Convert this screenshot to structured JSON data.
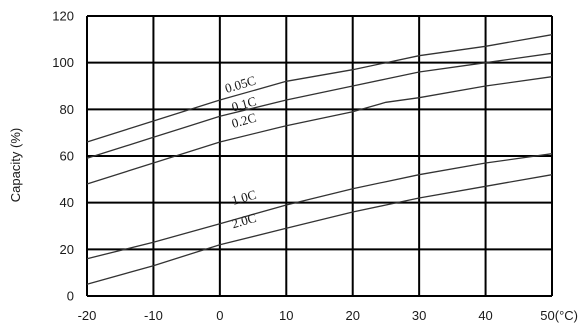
{
  "chart_data": {
    "type": "line",
    "ylabel": "Capacity (%)",
    "xlim": [
      -20,
      50
    ],
    "ylim": [
      0,
      120
    ],
    "grid": true,
    "x_ticks": [
      "-20",
      "-10",
      "0",
      "10",
      "20",
      "30",
      "40",
      "50(°C)"
    ],
    "y_ticks": [
      "0",
      "20",
      "40",
      "60",
      "80",
      "100",
      "120"
    ],
    "series": [
      {
        "name": "0.05C",
        "points": [
          [
            -20,
            66
          ],
          [
            -10,
            75
          ],
          [
            0,
            84
          ],
          [
            10,
            92
          ],
          [
            20,
            97
          ],
          [
            25,
            100
          ],
          [
            30,
            103
          ],
          [
            40,
            107
          ],
          [
            50,
            112
          ]
        ]
      },
      {
        "name": "0.1C",
        "points": [
          [
            -20,
            59
          ],
          [
            -10,
            68
          ],
          [
            0,
            77
          ],
          [
            10,
            84
          ],
          [
            20,
            90
          ],
          [
            25,
            93
          ],
          [
            30,
            96
          ],
          [
            40,
            100
          ],
          [
            50,
            104
          ]
        ]
      },
      {
        "name": "0.2C",
        "points": [
          [
            -20,
            48
          ],
          [
            -10,
            57
          ],
          [
            0,
            66
          ],
          [
            10,
            73
          ],
          [
            20,
            79
          ],
          [
            25,
            83
          ],
          [
            30,
            85
          ],
          [
            40,
            90
          ],
          [
            50,
            94
          ]
        ]
      },
      {
        "name": "1.0C",
        "points": [
          [
            -20,
            16
          ],
          [
            -10,
            23
          ],
          [
            0,
            31
          ],
          [
            10,
            39
          ],
          [
            20,
            46
          ],
          [
            25,
            49
          ],
          [
            30,
            52
          ],
          [
            40,
            57
          ],
          [
            50,
            61
          ]
        ]
      },
      {
        "name": "2.0C",
        "points": [
          [
            -20,
            5
          ],
          [
            -10,
            13
          ],
          [
            0,
            22
          ],
          [
            10,
            29
          ],
          [
            20,
            36
          ],
          [
            25,
            39
          ],
          [
            30,
            42
          ],
          [
            40,
            47
          ],
          [
            50,
            52
          ]
        ]
      }
    ],
    "label_at": [
      [
        1,
        87
      ],
      [
        2,
        79
      ],
      [
        2,
        72
      ],
      [
        2,
        39
      ],
      [
        2,
        29
      ]
    ]
  }
}
